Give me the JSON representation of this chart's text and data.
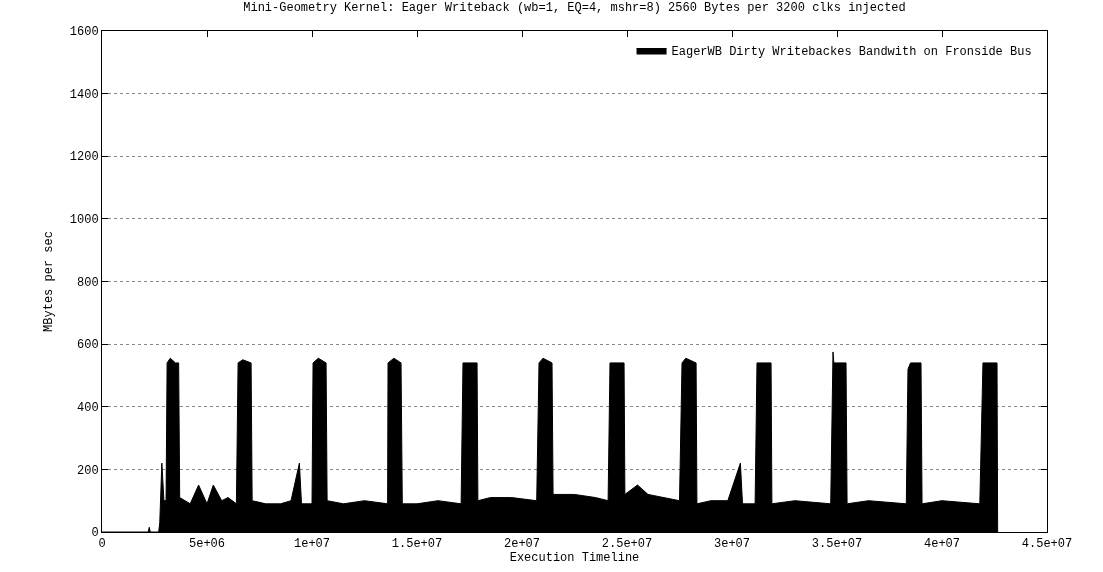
{
  "chart_data": {
    "type": "area",
    "title": "Mini-Geometry Kernel: Eager Writeback (wb=1, EQ=4, mshr=8) 2560 Bytes per 3200 clks injected",
    "xlabel": "Execution Timeline",
    "ylabel": "MBytes per sec",
    "xlim": [
      0,
      45000000
    ],
    "xticks": [
      {
        "value": 0,
        "label": "0"
      },
      {
        "value": 5000000,
        "label": "5e+06"
      },
      {
        "value": 10000000,
        "label": "1e+07"
      },
      {
        "value": 15000000,
        "label": "1.5e+07"
      },
      {
        "value": 20000000,
        "label": "2e+07"
      },
      {
        "value": 25000000,
        "label": "2.5e+07"
      },
      {
        "value": 30000000,
        "label": "3e+07"
      },
      {
        "value": 35000000,
        "label": "3.5e+07"
      },
      {
        "value": 40000000,
        "label": "4e+07"
      },
      {
        "value": 45000000,
        "label": "4.5e+07"
      }
    ],
    "ylim": [
      0,
      1600
    ],
    "yticks": [
      0,
      200,
      400,
      600,
      800,
      1000,
      1200,
      1400,
      1600
    ],
    "grid": "y",
    "legend": "top right",
    "x": [
      0,
      2200000,
      2250000,
      2300000,
      2700000,
      2750000,
      2850000,
      2950000,
      3050000,
      3100000,
      3250000,
      3500000,
      3650000,
      3700000,
      4200000,
      4600000,
      5000000,
      5300000,
      5700000,
      6000000,
      6400000,
      6480000,
      6700000,
      7100000,
      7150000,
      7800000,
      8500000,
      9000000,
      9400000,
      9500000,
      10000000,
      10050000,
      10300000,
      10670000,
      10720000,
      11500000,
      12500000,
      13600000,
      13620000,
      13900000,
      14240000,
      14300000,
      15000000,
      16000000,
      17100000,
      17190000,
      17860000,
      17900000,
      18500000,
      19500000,
      20700000,
      20810000,
      21000000,
      21430000,
      21480000,
      22500000,
      23500000,
      24100000,
      24190000,
      24860000,
      24900000,
      25500000,
      26000000,
      27500000,
      27620000,
      27800000,
      28290000,
      28330000,
      29000000,
      29800000,
      30400000,
      30500000,
      31100000,
      31190000,
      31860000,
      31900000,
      33000000,
      34700000,
      34810000,
      34850000,
      35430000,
      35480000,
      36500000,
      38300000,
      38380000,
      38500000,
      39000000,
      39050000,
      40000000,
      41800000,
      41950000,
      42620000,
      42650000
    ],
    "series": [
      {
        "name": "EagerWB Dirty Writebackes Bandwith on Fronside Bus",
        "color": "#000000",
        "values": [
          0,
          0,
          15,
          0,
          0,
          30,
          220,
          100,
          100,
          540,
          555,
          540,
          540,
          110,
          90,
          150,
          90,
          150,
          100,
          110,
          90,
          540,
          550,
          540,
          100,
          90,
          90,
          100,
          220,
          90,
          90,
          540,
          555,
          540,
          100,
          90,
          100,
          90,
          540,
          555,
          540,
          90,
          90,
          100,
          90,
          540,
          540,
          100,
          110,
          110,
          100,
          540,
          555,
          540,
          120,
          120,
          110,
          100,
          540,
          540,
          120,
          150,
          120,
          100,
          540,
          555,
          540,
          90,
          100,
          100,
          220,
          90,
          90,
          540,
          540,
          90,
          100,
          90,
          575,
          540,
          540,
          90,
          100,
          90,
          520,
          540,
          540,
          90,
          100,
          90,
          540,
          540,
          0
        ]
      }
    ]
  }
}
